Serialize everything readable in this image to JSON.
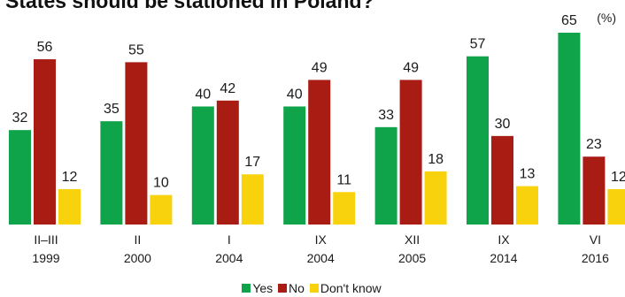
{
  "title": "States should be stationed in Poland?",
  "unit": "(%)",
  "colors": {
    "yes": "#0fa44a",
    "no": "#a81c13",
    "dont_know": "#f8d20c"
  },
  "chart_data": {
    "type": "bar",
    "title": "States should be stationed in Poland?",
    "unit": "(%)",
    "categories": [
      {
        "period": "II–III",
        "year": "1999"
      },
      {
        "period": "II",
        "year": "2000"
      },
      {
        "period": "I",
        "year": "2004"
      },
      {
        "period": "IX",
        "year": "2004"
      },
      {
        "period": "XII",
        "year": "2005"
      },
      {
        "period": "IX",
        "year": "2014"
      },
      {
        "period": "VI",
        "year": "2016"
      }
    ],
    "series": [
      {
        "name": "Yes",
        "color": "#0fa44a",
        "values": [
          32,
          35,
          40,
          40,
          33,
          57,
          65
        ]
      },
      {
        "name": "No",
        "color": "#a81c13",
        "values": [
          56,
          55,
          42,
          49,
          49,
          30,
          23
        ]
      },
      {
        "name": "Don't know",
        "color": "#f8d20c",
        "values": [
          12,
          10,
          17,
          11,
          18,
          13,
          12
        ]
      }
    ],
    "ylim": [
      0,
      65
    ],
    "grid": false,
    "legend_position": "bottom-center"
  }
}
